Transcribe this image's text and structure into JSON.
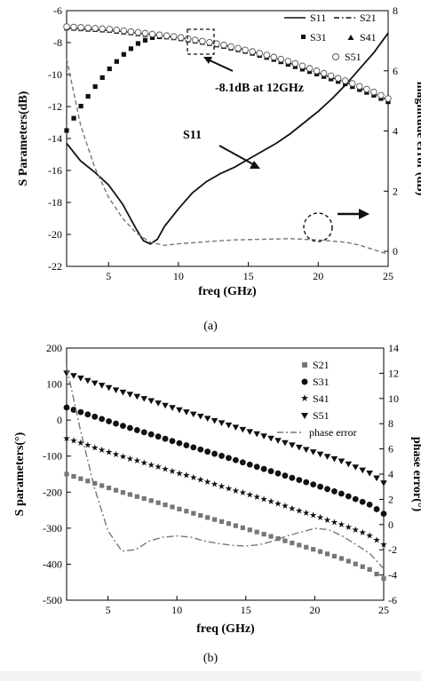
{
  "chart_data": [
    {
      "type": "line",
      "panel_label": "(a)",
      "xlabel": "freq (GHz)",
      "ylabel": "S Parameters(dB)",
      "y2label": "magnitude error (dB)",
      "xlim": [
        2,
        25
      ],
      "ylim": [
        -22,
        -6
      ],
      "y2lim": [
        -0.5,
        8
      ],
      "xticks": [
        5,
        10,
        15,
        20,
        25
      ],
      "yticks": [
        -22,
        -20,
        -18,
        -16,
        -14,
        -12,
        -10,
        -8,
        -6
      ],
      "y2ticks": [
        0,
        2,
        4,
        6,
        8
      ],
      "grid": false,
      "legend_position": "top-right",
      "series": [
        {
          "name": "S11",
          "style": "solid",
          "color": "#111111",
          "x": [
            2,
            3,
            4,
            5,
            6,
            7,
            7.5,
            8,
            8.5,
            9,
            10,
            11,
            12,
            13,
            14,
            15,
            16,
            17,
            18,
            19,
            20,
            21,
            22,
            23,
            24,
            25
          ],
          "y": [
            -14.3,
            -15.4,
            -16.1,
            -16.9,
            -18.1,
            -19.7,
            -20.4,
            -20.6,
            -20.3,
            -19.5,
            -18.4,
            -17.4,
            -16.7,
            -16.2,
            -15.8,
            -15.3,
            -14.8,
            -14.3,
            -13.7,
            -13.0,
            -12.3,
            -11.5,
            -10.6,
            -9.6,
            -8.6,
            -7.4
          ]
        },
        {
          "name": "S21",
          "style": "dash-dot",
          "color": "#111111",
          "x": [
            2,
            3,
            4,
            5,
            6,
            7,
            8,
            9,
            10,
            11,
            12,
            13,
            14,
            15,
            16,
            17,
            18,
            19,
            20,
            21,
            22,
            23,
            24,
            25
          ],
          "y": [
            -7.1,
            -7.15,
            -7.2,
            -7.25,
            -7.3,
            -7.4,
            -7.5,
            -7.6,
            -7.7,
            -7.8,
            -7.95,
            -8.1,
            -8.3,
            -8.5,
            -8.75,
            -9.0,
            -9.3,
            -9.6,
            -9.9,
            -10.2,
            -10.5,
            -10.85,
            -11.2,
            -11.6
          ]
        },
        {
          "name": "S31",
          "marker": "square",
          "color": "#111111",
          "x": [
            2,
            3,
            4,
            5,
            6,
            7,
            8,
            9,
            10,
            11,
            12,
            13,
            14,
            15,
            16,
            17,
            18,
            19,
            20,
            21,
            22,
            23,
            24,
            25
          ],
          "y": [
            -13.5,
            -12.0,
            -10.8,
            -9.7,
            -8.8,
            -8.1,
            -7.7,
            -7.6,
            -7.7,
            -7.85,
            -8.0,
            -8.2,
            -8.4,
            -8.6,
            -8.85,
            -9.1,
            -9.4,
            -9.7,
            -10.0,
            -10.3,
            -10.6,
            -10.95,
            -11.3,
            -11.7
          ]
        },
        {
          "name": "S41",
          "marker": "triangle",
          "color": "#111111",
          "x": [
            2,
            3,
            4,
            5,
            6,
            7,
            8,
            9,
            10,
            11,
            12,
            13,
            14,
            15,
            16,
            17,
            18,
            19,
            20,
            21,
            22,
            23,
            24,
            25
          ],
          "y": [
            -7.1,
            -7.15,
            -7.2,
            -7.25,
            -7.35,
            -7.45,
            -7.55,
            -7.65,
            -7.75,
            -7.9,
            -8.05,
            -8.2,
            -8.4,
            -8.6,
            -8.85,
            -9.1,
            -9.4,
            -9.7,
            -10.0,
            -10.3,
            -10.6,
            -10.95,
            -11.3,
            -11.7
          ]
        },
        {
          "name": "S51",
          "marker": "circle-open",
          "color": "#555555",
          "x": [
            2,
            3,
            4,
            5,
            6,
            7,
            8,
            9,
            10,
            11,
            12,
            13,
            14,
            15,
            16,
            17,
            18,
            19,
            20,
            21,
            22,
            23,
            24,
            25
          ],
          "y": [
            -7.0,
            -7.05,
            -7.1,
            -7.15,
            -7.25,
            -7.35,
            -7.45,
            -7.55,
            -7.65,
            -7.8,
            -7.95,
            -8.1,
            -8.3,
            -8.5,
            -8.7,
            -8.95,
            -9.2,
            -9.5,
            -9.8,
            -10.1,
            -10.4,
            -10.75,
            -11.1,
            -11.5
          ]
        },
        {
          "name": "magnitude error",
          "axis": "right",
          "style": "dashed",
          "color": "#777777",
          "x": [
            2,
            3,
            4,
            5,
            6,
            7,
            8,
            9,
            10,
            12,
            14,
            16,
            18,
            20,
            22,
            23,
            24,
            25
          ],
          "y": [
            6.4,
            4.2,
            2.8,
            1.8,
            1.1,
            0.6,
            0.3,
            0.2,
            0.25,
            0.32,
            0.38,
            0.4,
            0.42,
            0.38,
            0.3,
            0.2,
            0.05,
            -0.1
          ]
        }
      ],
      "annotations": [
        {
          "text": "-8.1dB at 12GHz"
        },
        {
          "text": "S11"
        }
      ]
    },
    {
      "type": "line",
      "panel_label": "(b)",
      "xlabel": "freq (GHz)",
      "ylabel": "S parameters(°)",
      "y2label": "phase error(°)",
      "xlim": [
        2,
        25
      ],
      "ylim": [
        -500,
        200
      ],
      "y2lim": [
        -6,
        14
      ],
      "xticks": [
        5,
        10,
        15,
        20,
        25
      ],
      "yticks": [
        -500,
        -400,
        -300,
        -200,
        -100,
        0,
        100,
        200
      ],
      "y2ticks": [
        -6,
        -4,
        -2,
        0,
        2,
        4,
        6,
        8,
        10,
        12,
        14
      ],
      "grid": false,
      "legend_position": "top-right",
      "series": [
        {
          "name": "S21",
          "marker": "square",
          "color": "#777777",
          "x": [
            2,
            4,
            6,
            8,
            10,
            12,
            14,
            16,
            18,
            20,
            22,
            24,
            25
          ],
          "y": [
            -150,
            -175,
            -200,
            -222,
            -245,
            -268,
            -290,
            -313,
            -337,
            -360,
            -385,
            -415,
            -440
          ]
        },
        {
          "name": "S31",
          "marker": "circle",
          "color": "#111111",
          "x": [
            2,
            4,
            6,
            8,
            10,
            12,
            14,
            16,
            18,
            20,
            22,
            24,
            25
          ],
          "y": [
            35,
            10,
            -15,
            -38,
            -62,
            -85,
            -108,
            -132,
            -156,
            -180,
            -205,
            -235,
            -260
          ]
        },
        {
          "name": "S41",
          "marker": "star",
          "color": "#111111",
          "x": [
            2,
            4,
            6,
            8,
            10,
            12,
            14,
            16,
            18,
            20,
            22,
            24,
            25
          ],
          "y": [
            -50,
            -75,
            -100,
            -122,
            -145,
            -168,
            -192,
            -215,
            -240,
            -265,
            -290,
            -320,
            -345
          ]
        },
        {
          "name": "S51",
          "marker": "triangle-down",
          "color": "#111111",
          "x": [
            2,
            4,
            6,
            8,
            10,
            12,
            14,
            16,
            18,
            20,
            22,
            24,
            25
          ],
          "y": [
            130,
            103,
            78,
            55,
            30,
            7,
            -17,
            -41,
            -65,
            -90,
            -115,
            -148,
            -175
          ]
        },
        {
          "name": "phase error",
          "axis": "right",
          "style": "dash-dot",
          "color": "#777777",
          "x": [
            2,
            3,
            4,
            5,
            6,
            7,
            8,
            9,
            10,
            11,
            12,
            13,
            14,
            15,
            16,
            17,
            18,
            19,
            20,
            21,
            22,
            23,
            24,
            25
          ],
          "y": [
            12.5,
            7.5,
            3.0,
            -0.5,
            -2.1,
            -2.0,
            -1.3,
            -1.0,
            -0.9,
            -1.0,
            -1.3,
            -1.5,
            -1.65,
            -1.7,
            -1.6,
            -1.3,
            -0.9,
            -0.6,
            -0.3,
            -0.4,
            -0.9,
            -1.6,
            -2.3,
            -3.5
          ]
        }
      ],
      "annotations": []
    }
  ]
}
